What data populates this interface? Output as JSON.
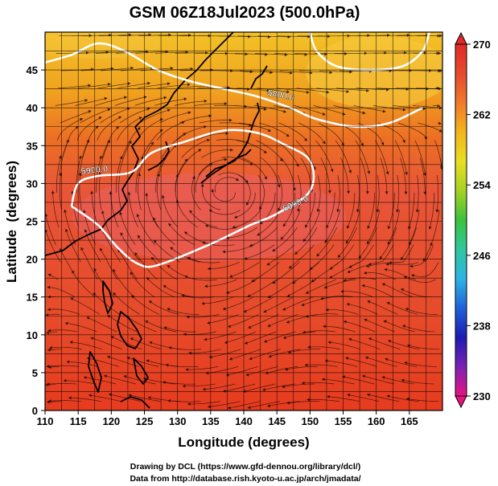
{
  "title": "GSM 06Z18Jul2023 (500.0hPa)",
  "xlabel": "Longitude (degrees)",
  "ylabel": "Latitude  (degrees)",
  "credits": [
    "Drawing by DCL (https://www.gfd-dennou.org/library/dcl/)",
    "Data from http://database.rish.kyoto-u.ac.jp/arch/jmadata/"
  ],
  "chart_data": {
    "type": "heatmap",
    "variable_note": "",
    "x_ticks": [
      "110",
      "115",
      "120",
      "125",
      "130",
      "135",
      "140",
      "145",
      "150",
      "155",
      "160",
      "165"
    ],
    "y_ticks": [
      "0",
      "5",
      "10",
      "15",
      "20",
      "25",
      "30",
      "35",
      "40",
      "45"
    ],
    "xlim": [
      110,
      170
    ],
    "ylim": [
      0,
      50
    ],
    "colorbar": {
      "ticks": [
        "270",
        "262",
        "254",
        "246",
        "238",
        "230"
      ],
      "range": [
        230,
        270
      ],
      "colors": [
        "#e8137f",
        "#7b22b5",
        "#1c1ab3",
        "#1f61d9",
        "#2eb4e3",
        "#2fc79f",
        "#3cc23c",
        "#a6d123",
        "#e8de24",
        "#f2b51c",
        "#f07a2b",
        "#e64a2e",
        "#e02a2a"
      ]
    },
    "contours": [
      {
        "label": "5800.0",
        "points": [
          [
            110,
            46
          ],
          [
            114,
            47
          ],
          [
            118,
            48.5
          ],
          [
            122,
            47.5
          ],
          [
            127,
            45
          ],
          [
            132,
            43.5
          ],
          [
            137,
            42.5
          ],
          [
            142,
            41.5
          ],
          [
            147,
            40
          ],
          [
            151,
            38.5
          ],
          [
            157,
            37.5
          ],
          [
            162,
            38
          ],
          [
            167,
            40
          ]
        ]
      },
      {
        "label": "5900.0",
        "points": [
          [
            114,
            27
          ],
          [
            115,
            30
          ],
          [
            118,
            31
          ],
          [
            123,
            31.5
          ],
          [
            126,
            34
          ],
          [
            131,
            35.5
          ],
          [
            137,
            37
          ],
          [
            142,
            36.7
          ],
          [
            146,
            35.2
          ],
          [
            150,
            33
          ],
          [
            150,
            29
          ],
          [
            145,
            26
          ],
          [
            141,
            24.5
          ],
          [
            135,
            22
          ],
          [
            127,
            19.2
          ],
          [
            124,
            19.4
          ],
          [
            121,
            21.5
          ],
          [
            118,
            24.5
          ],
          [
            114,
            27
          ]
        ]
      },
      {
        "label": "",
        "points": [
          [
            150,
            50
          ],
          [
            151,
            47.5
          ],
          [
            154,
            45.5
          ],
          [
            159,
            45
          ],
          [
            164,
            45.5
          ],
          [
            167,
            47.5
          ],
          [
            168,
            50
          ]
        ]
      }
    ],
    "contour_labels": [
      {
        "text": "5800.0",
        "x": 145.5,
        "y": 41.3,
        "angle": 12
      },
      {
        "text": "5900.0",
        "x": 117.5,
        "y": 31.4,
        "angle": -6
      },
      {
        "text": "5900.0",
        "x": 148,
        "y": 27.0,
        "angle": -25
      }
    ]
  }
}
